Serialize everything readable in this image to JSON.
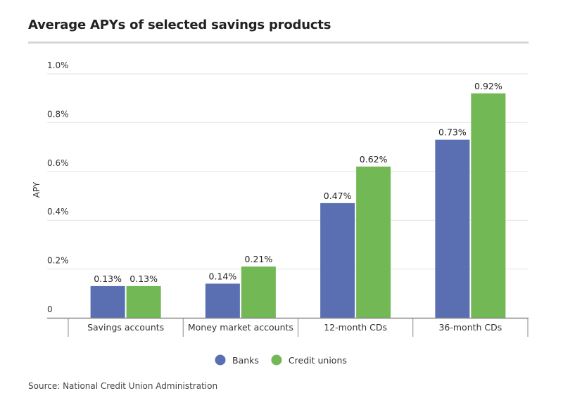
{
  "title": "Average APYs of selected savings products",
  "source": "Source: National Credit Union Administration",
  "chart_data": {
    "type": "bar",
    "title": "Average APYs of selected savings products",
    "ylabel": "APY",
    "xlabel": "",
    "categories": [
      "Savings accounts",
      "Money market accounts",
      "12-month CDs",
      "36-month CDs"
    ],
    "series": [
      {
        "name": "Banks",
        "color": "#5a6fb1",
        "values": [
          0.13,
          0.14,
          0.47,
          0.73
        ],
        "labels": [
          "0.13%",
          "0.14%",
          "0.47%",
          "0.73%"
        ]
      },
      {
        "name": "Credit unions",
        "color": "#72b855",
        "values": [
          0.13,
          0.21,
          0.62,
          0.92
        ],
        "labels": [
          "0.13%",
          "0.21%",
          "0.62%",
          "0.92%"
        ]
      }
    ],
    "ylim": [
      0,
      1.0
    ],
    "yticks": [
      0,
      0.2,
      0.4,
      0.6,
      0.8,
      1.0
    ],
    "ytick_labels": [
      "0",
      "0.2%",
      "0.4%",
      "0.6%",
      "0.8%",
      "1.0%"
    ],
    "grid": true,
    "legend_position": "bottom"
  }
}
